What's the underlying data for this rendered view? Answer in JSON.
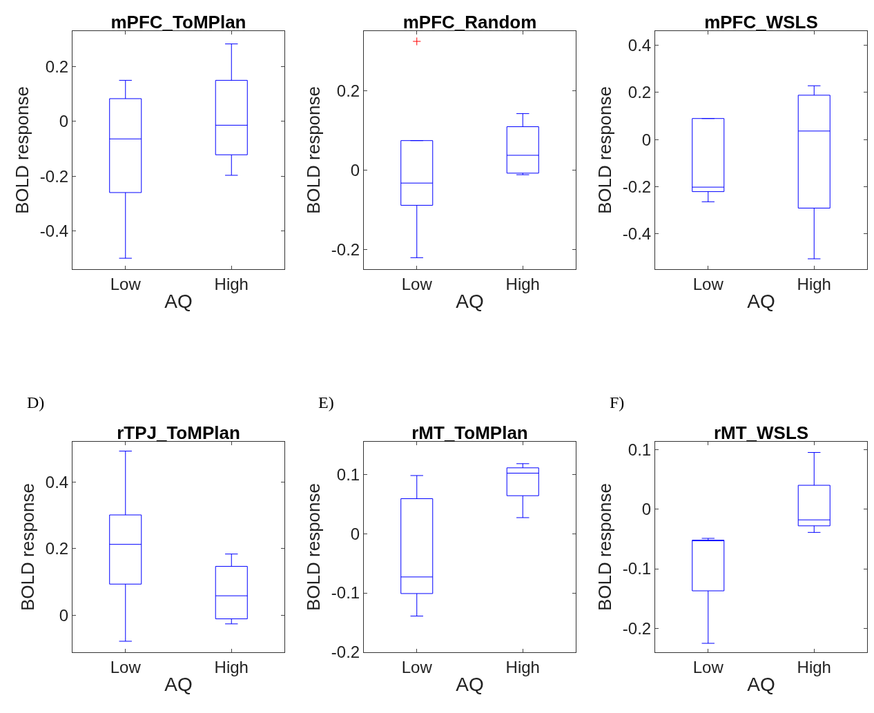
{
  "chart_data": [
    {
      "type": "box",
      "title": "mPFC_ToMPlan",
      "xlabel": "AQ",
      "ylabel": "BOLD response",
      "categories": [
        "Low",
        "High"
      ],
      "ylim": [
        -0.54,
        0.33
      ],
      "yticks": [
        -0.4,
        -0.2,
        0,
        0.2
      ],
      "grid": false,
      "series": [
        {
          "color": "#0000ff",
          "boxes": [
            {
              "low": -0.5,
              "q1": -0.26,
              "median": -0.064,
              "q3": 0.083,
              "high": 0.15
            },
            {
              "low": -0.197,
              "q1": -0.122,
              "median": -0.014,
              "q3": 0.15,
              "high": 0.283
            }
          ]
        }
      ]
    },
    {
      "type": "box",
      "title": "mPFC_Random",
      "xlabel": "AQ",
      "ylabel": "BOLD response",
      "categories": [
        "Low",
        "High"
      ],
      "ylim": [
        -0.25,
        0.35
      ],
      "yticks": [
        -0.2,
        0,
        0.2
      ],
      "grid": false,
      "marker": "cross",
      "series": [
        {
          "color": "#0000ff",
          "boxes": [
            {
              "low": -0.221,
              "q1": -0.089,
              "median": -0.033,
              "q3": 0.074,
              "high": 0.074,
              "outliers": [
                0.324
              ]
            },
            {
              "low": -0.012,
              "q1": -0.008,
              "median": 0.037,
              "q3": 0.109,
              "high": 0.142
            }
          ]
        }
      ]
    },
    {
      "type": "box",
      "title": "mPFC_WSLS",
      "xlabel": "AQ",
      "ylabel": "BOLD response",
      "categories": [
        "Low",
        "High"
      ],
      "ylim": [
        -0.55,
        0.46
      ],
      "yticks": [
        -0.4,
        -0.2,
        0,
        0.2,
        0.4
      ],
      "grid": false,
      "series": [
        {
          "color": "#0000ff",
          "boxes": [
            {
              "low": -0.264,
              "q1": -0.221,
              "median": -0.202,
              "q3": 0.089,
              "high": 0.089
            },
            {
              "low": -0.506,
              "q1": -0.291,
              "median": 0.036,
              "q3": 0.188,
              "high": 0.228
            }
          ]
        }
      ]
    },
    {
      "type": "box",
      "title": "rTPJ_ToMPlan",
      "xlabel": "AQ",
      "ylabel": "BOLD response",
      "categories": [
        "Low",
        "High"
      ],
      "ylim": [
        -0.11,
        0.52
      ],
      "yticks": [
        0,
        0.2,
        0.4
      ],
      "grid": false,
      "annotations": [
        "D)"
      ],
      "series": [
        {
          "color": "#0000ff",
          "boxes": [
            {
              "low": -0.077,
              "q1": 0.094,
              "median": 0.213,
              "q3": 0.301,
              "high": 0.492
            },
            {
              "low": -0.025,
              "q1": -0.01,
              "median": 0.059,
              "q3": 0.147,
              "high": 0.184
            }
          ]
        }
      ]
    },
    {
      "type": "box",
      "title": "rMT_ToMPlan",
      "xlabel": "AQ",
      "ylabel": "BOLD response",
      "categories": [
        "Low",
        "High"
      ],
      "ylim": [
        -0.2,
        0.155
      ],
      "yticks": [
        -0.2,
        -0.1,
        0,
        0.1
      ],
      "grid": false,
      "annotations": [
        "E)"
      ],
      "series": [
        {
          "color": "#0000ff",
          "boxes": [
            {
              "low": -0.139,
              "q1": -0.101,
              "median": -0.073,
              "q3": 0.059,
              "high": 0.098
            },
            {
              "low": 0.027,
              "q1": 0.064,
              "median": 0.102,
              "q3": 0.111,
              "high": 0.118
            }
          ]
        }
      ]
    },
    {
      "type": "box",
      "title": "rMT_WSLS",
      "xlabel": "AQ",
      "ylabel": "BOLD response",
      "categories": [
        "Low",
        "High"
      ],
      "ylim": [
        -0.24,
        0.113
      ],
      "yticks": [
        -0.2,
        -0.1,
        0,
        0.1
      ],
      "grid": false,
      "annotations": [
        "F)"
      ],
      "series": [
        {
          "color": "#0000ff",
          "boxes": [
            {
              "low": -0.225,
              "q1": -0.137,
              "median": -0.052,
              "q3": -0.052,
              "high": -0.049
            },
            {
              "low": -0.039,
              "q1": -0.028,
              "median": -0.018,
              "q3": 0.04,
              "high": 0.095
            }
          ]
        }
      ]
    }
  ]
}
